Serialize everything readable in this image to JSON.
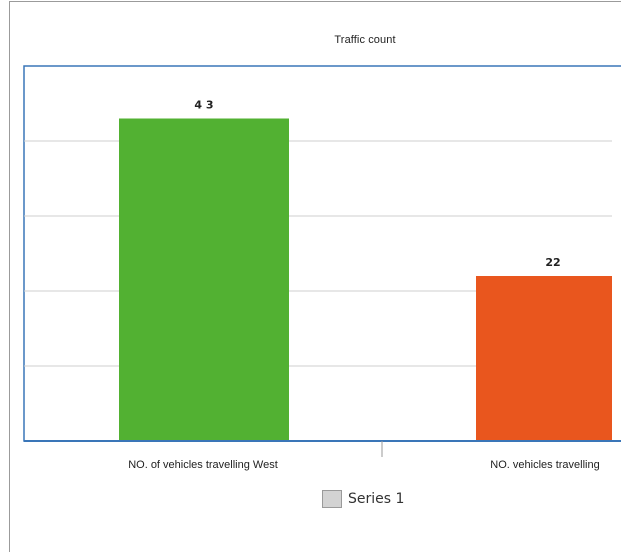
{
  "chart_data": {
    "type": "bar",
    "title": "Traffic count",
    "xlabel": "",
    "ylabel": "",
    "categories": [
      "NO. of vehicles travelling West",
      "NO. vehicles travelling"
    ],
    "series": [
      {
        "name": "Series 1",
        "values": [
          43,
          22
        ],
        "data_labels": [
          "4 3",
          "22"
        ]
      }
    ],
    "bar_colors": [
      "#52b132",
      "#e9561e"
    ],
    "ylim": [
      0,
      50
    ],
    "grid": true,
    "legend_position": "bottom"
  }
}
